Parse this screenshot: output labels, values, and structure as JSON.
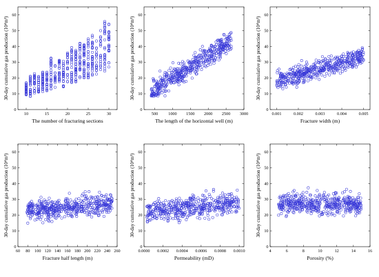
{
  "chart_data": [
    {
      "type": "scatter",
      "xlabel": "The number of fracturing sections",
      "ylabel": "30-day cumulative gas production (10⁴m³)",
      "xlim": [
        8,
        32
      ],
      "ylim": [
        0,
        65
      ],
      "xticks": [
        10,
        15,
        20,
        25,
        30
      ],
      "yticks": [
        0,
        10,
        20,
        30,
        40,
        50,
        60
      ],
      "xtick_labels": [
        "10",
        "15",
        "20",
        "25",
        "30"
      ],
      "ytick_labels": [
        "0",
        "10",
        "20",
        "30",
        "40",
        "50",
        "60"
      ],
      "x": [
        10,
        11,
        12,
        13,
        14,
        15,
        16,
        17,
        18,
        19,
        20,
        21,
        22,
        23,
        24,
        25,
        26,
        27,
        28,
        29,
        30
      ],
      "y_range": [
        [
          9,
          17
        ],
        [
          8,
          22
        ],
        [
          10,
          23
        ],
        [
          11,
          22
        ],
        [
          11,
          24
        ],
        [
          11,
          25
        ],
        [
          13,
          33
        ],
        [
          14,
          28
        ],
        [
          16,
          32
        ],
        [
          14,
          33
        ],
        [
          17,
          36
        ],
        [
          17,
          40
        ],
        [
          17,
          38
        ],
        [
          19,
          42
        ],
        [
          20,
          42
        ],
        [
          20,
          45
        ],
        [
          21,
          47
        ],
        [
          22,
          48
        ],
        [
          25,
          50
        ],
        [
          24,
          57
        ],
        [
          26,
          55
        ]
      ],
      "n": 490
    },
    {
      "type": "scatter",
      "xlabel": "The length of the horizontal well (m)",
      "ylabel": "30-day cumulative gas production (10⁴m³)",
      "xlim": [
        200,
        3000
      ],
      "ylim": [
        0,
        65
      ],
      "xticks": [
        500,
        1000,
        1500,
        2000,
        2500,
        3000
      ],
      "yticks": [
        0,
        10,
        20,
        30,
        40,
        50,
        60
      ],
      "xtick_labels": [
        "500",
        "1000",
        "1500",
        "2000",
        "2500",
        "3000"
      ],
      "ytick_labels": [
        "0",
        "10",
        "20",
        "30",
        "40",
        "50",
        "60"
      ],
      "x_range": [
        400,
        2650
      ],
      "y_trend": {
        "slope": 0.0145,
        "intercept": 5,
        "spread": 12
      },
      "y_bounds": [
        8,
        57
      ],
      "n": 490
    },
    {
      "type": "scatter",
      "xlabel": "Fracture width (m)",
      "ylabel": "30-day cumulative gas production (10⁴m³)",
      "xlim": [
        0.0007,
        0.0053
      ],
      "ylim": [
        0,
        65
      ],
      "xticks": [
        0.001,
        0.002,
        0.003,
        0.004,
        0.005
      ],
      "yticks": [
        0,
        10,
        20,
        30,
        40,
        50,
        60
      ],
      "xtick_labels": [
        "0.001",
        "0.002",
        "0.003",
        "0.004",
        "0.005"
      ],
      "ytick_labels": [
        "0",
        "10",
        "20",
        "30",
        "40",
        "50",
        "60"
      ],
      "x_range": [
        0.001,
        0.005
      ],
      "y_trend": {
        "slope": 4000,
        "intercept": 14,
        "spread": 10
      },
      "y_bounds": [
        8,
        57
      ],
      "n": 490
    },
    {
      "type": "scatter",
      "xlabel": "Fracture half length (m)",
      "ylabel": "30-day cumulative gas production (10⁴m³)",
      "xlim": [
        60,
        260
      ],
      "ylim": [
        0,
        65
      ],
      "xticks": [
        60,
        80,
        100,
        120,
        140,
        160,
        180,
        200,
        220,
        240,
        260
      ],
      "yticks": [
        0,
        10,
        20,
        30,
        40,
        50,
        60
      ],
      "xtick_labels": [
        "60",
        "80",
        "100",
        "120",
        "140",
        "160",
        "180",
        "200",
        "220",
        "240",
        "260"
      ],
      "ytick_labels": [
        "0",
        "10",
        "20",
        "30",
        "40",
        "50",
        "60"
      ],
      "x_range": [
        78,
        250
      ],
      "y_trend": {
        "slope": 0.03,
        "intercept": 20,
        "spread": 11
      },
      "y_bounds": [
        8,
        57
      ],
      "n": 490
    },
    {
      "type": "scatter",
      "xlabel": "Permeability (mD)",
      "ylabel": "30-day cumulative gas production (10⁴m³)",
      "xlim": [
        0,
        0.00105
      ],
      "ylim": [
        0,
        65
      ],
      "xticks": [
        0,
        0.0002,
        0.0004,
        0.0006,
        0.0008,
        0.001
      ],
      "yticks": [
        0,
        10,
        20,
        30,
        40,
        50,
        60
      ],
      "xtick_labels": [
        "0.0000",
        "0.0002",
        "0.0004",
        "0.0006",
        "0.0008",
        "0.0010"
      ],
      "ytick_labels": [
        "0",
        "10",
        "20",
        "30",
        "40",
        "50",
        "60"
      ],
      "x_range": [
        3e-05,
        0.001
      ],
      "y_trend": {
        "slope": 6000,
        "intercept": 22,
        "spread": 12
      },
      "y_bounds": [
        8,
        57
      ],
      "n": 490
    },
    {
      "type": "scatter",
      "xlabel": "Porosity (%)",
      "ylabel": "30-day cumulative gas production (10⁴m³)",
      "xlim": [
        4,
        16
      ],
      "ylim": [
        0,
        65
      ],
      "xticks": [
        4,
        6,
        8,
        10,
        12,
        14,
        16
      ],
      "yticks": [
        0,
        10,
        20,
        30,
        40,
        50,
        60
      ],
      "xtick_labels": [
        "4",
        "6",
        "8",
        "10",
        "12",
        "14",
        "16"
      ],
      "ytick_labels": [
        "0",
        "10",
        "20",
        "30",
        "40",
        "50",
        "60"
      ],
      "x_range": [
        5,
        15
      ],
      "y_trend": {
        "slope": 0,
        "intercept": 27,
        "spread": 12
      },
      "y_bounds": [
        8,
        57
      ],
      "n": 490
    }
  ]
}
